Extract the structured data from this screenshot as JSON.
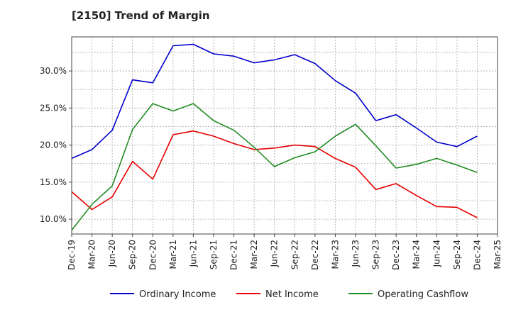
{
  "title": "[2150]  Trend of Margin",
  "chart_data": {
    "type": "line",
    "title": "[2150]  Trend of Margin",
    "xlabel": "",
    "ylabel": "",
    "x": [
      "Dec-19",
      "Mar-20",
      "Jun-20",
      "Sep-20",
      "Dec-20",
      "Mar-21",
      "Jun-21",
      "Sep-21",
      "Dec-21",
      "Mar-22",
      "Jun-22",
      "Sep-22",
      "Dec-22",
      "Mar-23",
      "Jun-23",
      "Sep-23",
      "Dec-23",
      "Mar-24",
      "Jun-24",
      "Sep-24",
      "Dec-24"
    ],
    "x_ticks": [
      "Dec-19",
      "Mar-20",
      "Jun-20",
      "Sep-20",
      "Dec-20",
      "Mar-21",
      "Jun-21",
      "Sep-21",
      "Dec-21",
      "Mar-22",
      "Jun-22",
      "Sep-22",
      "Dec-22",
      "Mar-23",
      "Jun-23",
      "Sep-23",
      "Dec-23",
      "Mar-24",
      "Jun-24",
      "Sep-24",
      "Dec-24",
      "Mar-25"
    ],
    "y_ticks": [
      "10.0%",
      "15.0%",
      "20.0%",
      "25.0%",
      "30.0%"
    ],
    "y_tick_values": [
      10,
      15,
      20,
      25,
      30
    ],
    "ylim": [
      8,
      34.6
    ],
    "grid": true,
    "legend_position": "bottom",
    "series": [
      {
        "name": "Ordinary Income",
        "color": "#0000cc",
        "values": [
          18.2,
          19.4,
          22.0,
          28.8,
          28.4,
          33.4,
          33.6,
          32.3,
          32.0,
          31.1,
          31.5,
          32.2,
          31.0,
          28.7,
          27.0,
          23.3,
          24.1,
          22.3,
          20.4,
          19.8,
          21.2
        ]
      },
      {
        "name": "Net Income",
        "color": "#e60000",
        "values": [
          13.7,
          11.3,
          13.0,
          17.8,
          15.4,
          21.4,
          21.9,
          21.2,
          20.2,
          19.4,
          19.6,
          20.0,
          19.8,
          18.2,
          17.0,
          14.0,
          14.8,
          13.2,
          11.7,
          11.6,
          10.2
        ]
      },
      {
        "name": "Operating Cashflow",
        "color": "#228b22",
        "values": [
          8.5,
          12.0,
          14.5,
          22.1,
          25.6,
          24.6,
          25.6,
          23.3,
          22.0,
          19.7,
          17.1,
          18.3,
          19.1,
          21.2,
          22.8,
          19.9,
          16.9,
          17.4,
          18.2,
          17.3,
          16.3
        ]
      }
    ]
  }
}
